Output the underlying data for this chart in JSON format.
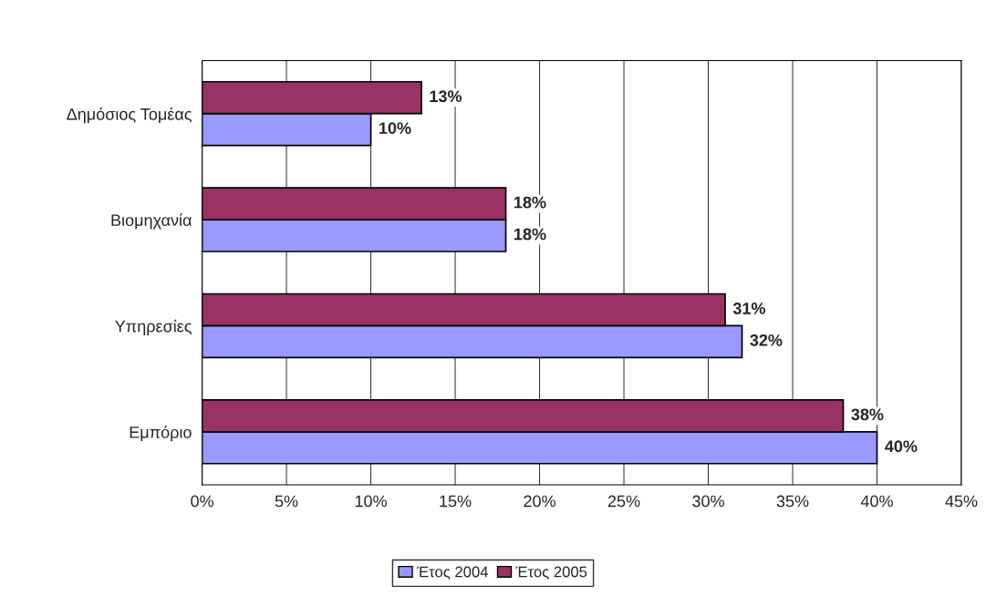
{
  "chart_data": {
    "type": "bar",
    "orientation": "horizontal",
    "categories": [
      "Δημόσιος Τομέας",
      "Βιομηχανία",
      "Υπηρεσίες",
      "Εμπόριο"
    ],
    "series": [
      {
        "name": "Έτος 2004",
        "color": "#9999ff",
        "values": [
          10,
          18,
          32,
          40
        ],
        "value_labels": [
          "10%",
          "18%",
          "32%",
          "40%"
        ]
      },
      {
        "name": "Έτος 2005",
        "color": "#993366",
        "values": [
          13,
          18,
          31,
          38
        ],
        "value_labels": [
          "13%",
          "18%",
          "31%",
          "38%"
        ]
      }
    ],
    "xlim": [
      0,
      45
    ],
    "xticks": [
      {
        "value": 0,
        "label": "0%"
      },
      {
        "value": 5,
        "label": "5%"
      },
      {
        "value": 10,
        "label": "10%"
      },
      {
        "value": 15,
        "label": "15%"
      },
      {
        "value": 20,
        "label": "20%"
      },
      {
        "value": 25,
        "label": "25%"
      },
      {
        "value": 30,
        "label": "30%"
      },
      {
        "value": 35,
        "label": "35%"
      },
      {
        "value": 40,
        "label": "40%"
      },
      {
        "value": 45,
        "label": "45%"
      }
    ],
    "grid": "x",
    "legend": "bottom"
  }
}
